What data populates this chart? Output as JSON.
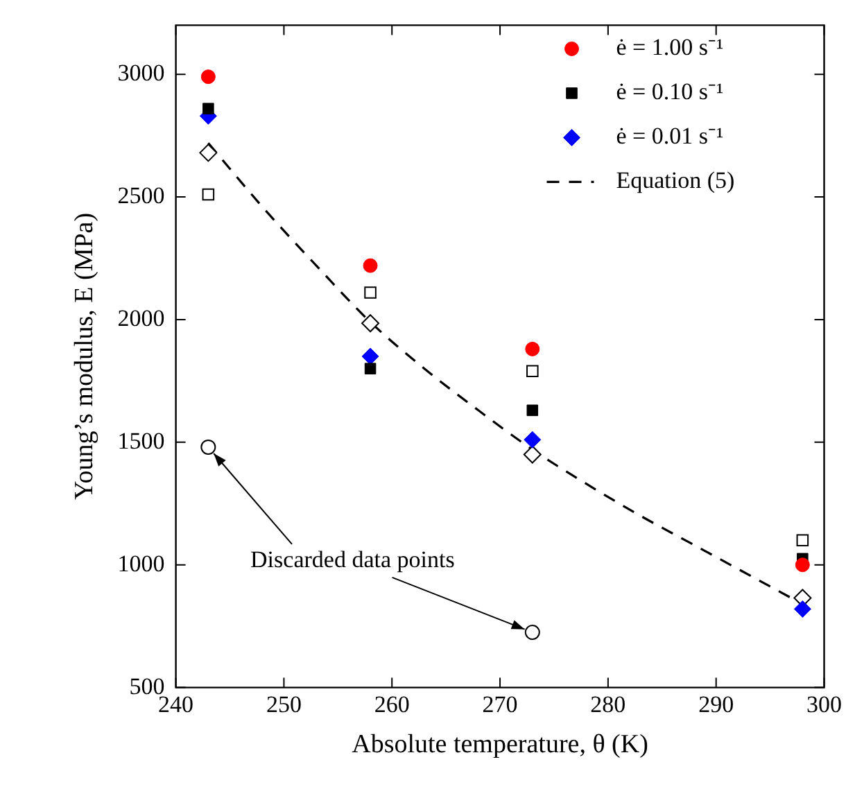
{
  "chart_data": {
    "type": "scatter",
    "xlabel": "Absolute temperature, θ (K)",
    "ylabel": "Young’s modulus, E (MPa)",
    "xlim": [
      240,
      300
    ],
    "xticks": [
      240,
      250,
      260,
      270,
      280,
      290,
      300
    ],
    "ylim": [
      500,
      3200
    ],
    "yticks": [
      500,
      1000,
      1500,
      2000,
      2500,
      3000
    ],
    "grid": false,
    "legend": "top right",
    "annotations": [
      {
        "text": "Discarded data points",
        "x": 243,
        "y": 1480
      }
    ],
    "series": [
      {
        "name": "ė = 1.00 s⁻¹",
        "color": "#ff0000",
        "marker": "circle",
        "x": [
          243,
          258,
          273,
          298
        ],
        "values": [
          2990,
          2220,
          1880,
          1000
        ]
      },
      {
        "name": "ė = 0.10 s⁻¹",
        "color": "#000000",
        "marker": "square",
        "x": [
          243,
          258,
          273,
          298
        ],
        "values": [
          2860,
          1800,
          1630,
          1025
        ]
      },
      {
        "name": "ė = 0.01 s⁻¹",
        "color": "#0000ff",
        "marker": "diamond",
        "x": [
          243,
          258,
          273,
          298
        ],
        "values": [
          2830,
          1850,
          1510,
          820
        ]
      },
      {
        "color": "#ffffff",
        "marker": "square",
        "x": [
          243,
          258,
          273,
          298
        ],
        "values": [
          2510,
          2110,
          1790,
          1100
        ]
      },
      {
        "color": "#ffffff",
        "marker": "diamond",
        "x": [
          243,
          258,
          273,
          298
        ],
        "values": [
          2680,
          1985,
          1450,
          865
        ]
      },
      {
        "color": "#ffffff",
        "marker": "circle",
        "x": [
          243,
          273
        ],
        "values": [
          1480,
          725
        ]
      },
      {
        "name": "Equation (5)",
        "type": "line",
        "color": "#000000",
        "marker": "none",
        "line_style": "dashed",
        "x": [
          243,
          248,
          253,
          258,
          263,
          268,
          273,
          278,
          283,
          288,
          293,
          298
        ],
        "values": [
          2720,
          2460,
          2220,
          1990,
          1800,
          1630,
          1470,
          1330,
          1200,
          1080,
          960,
          840
        ]
      }
    ]
  }
}
